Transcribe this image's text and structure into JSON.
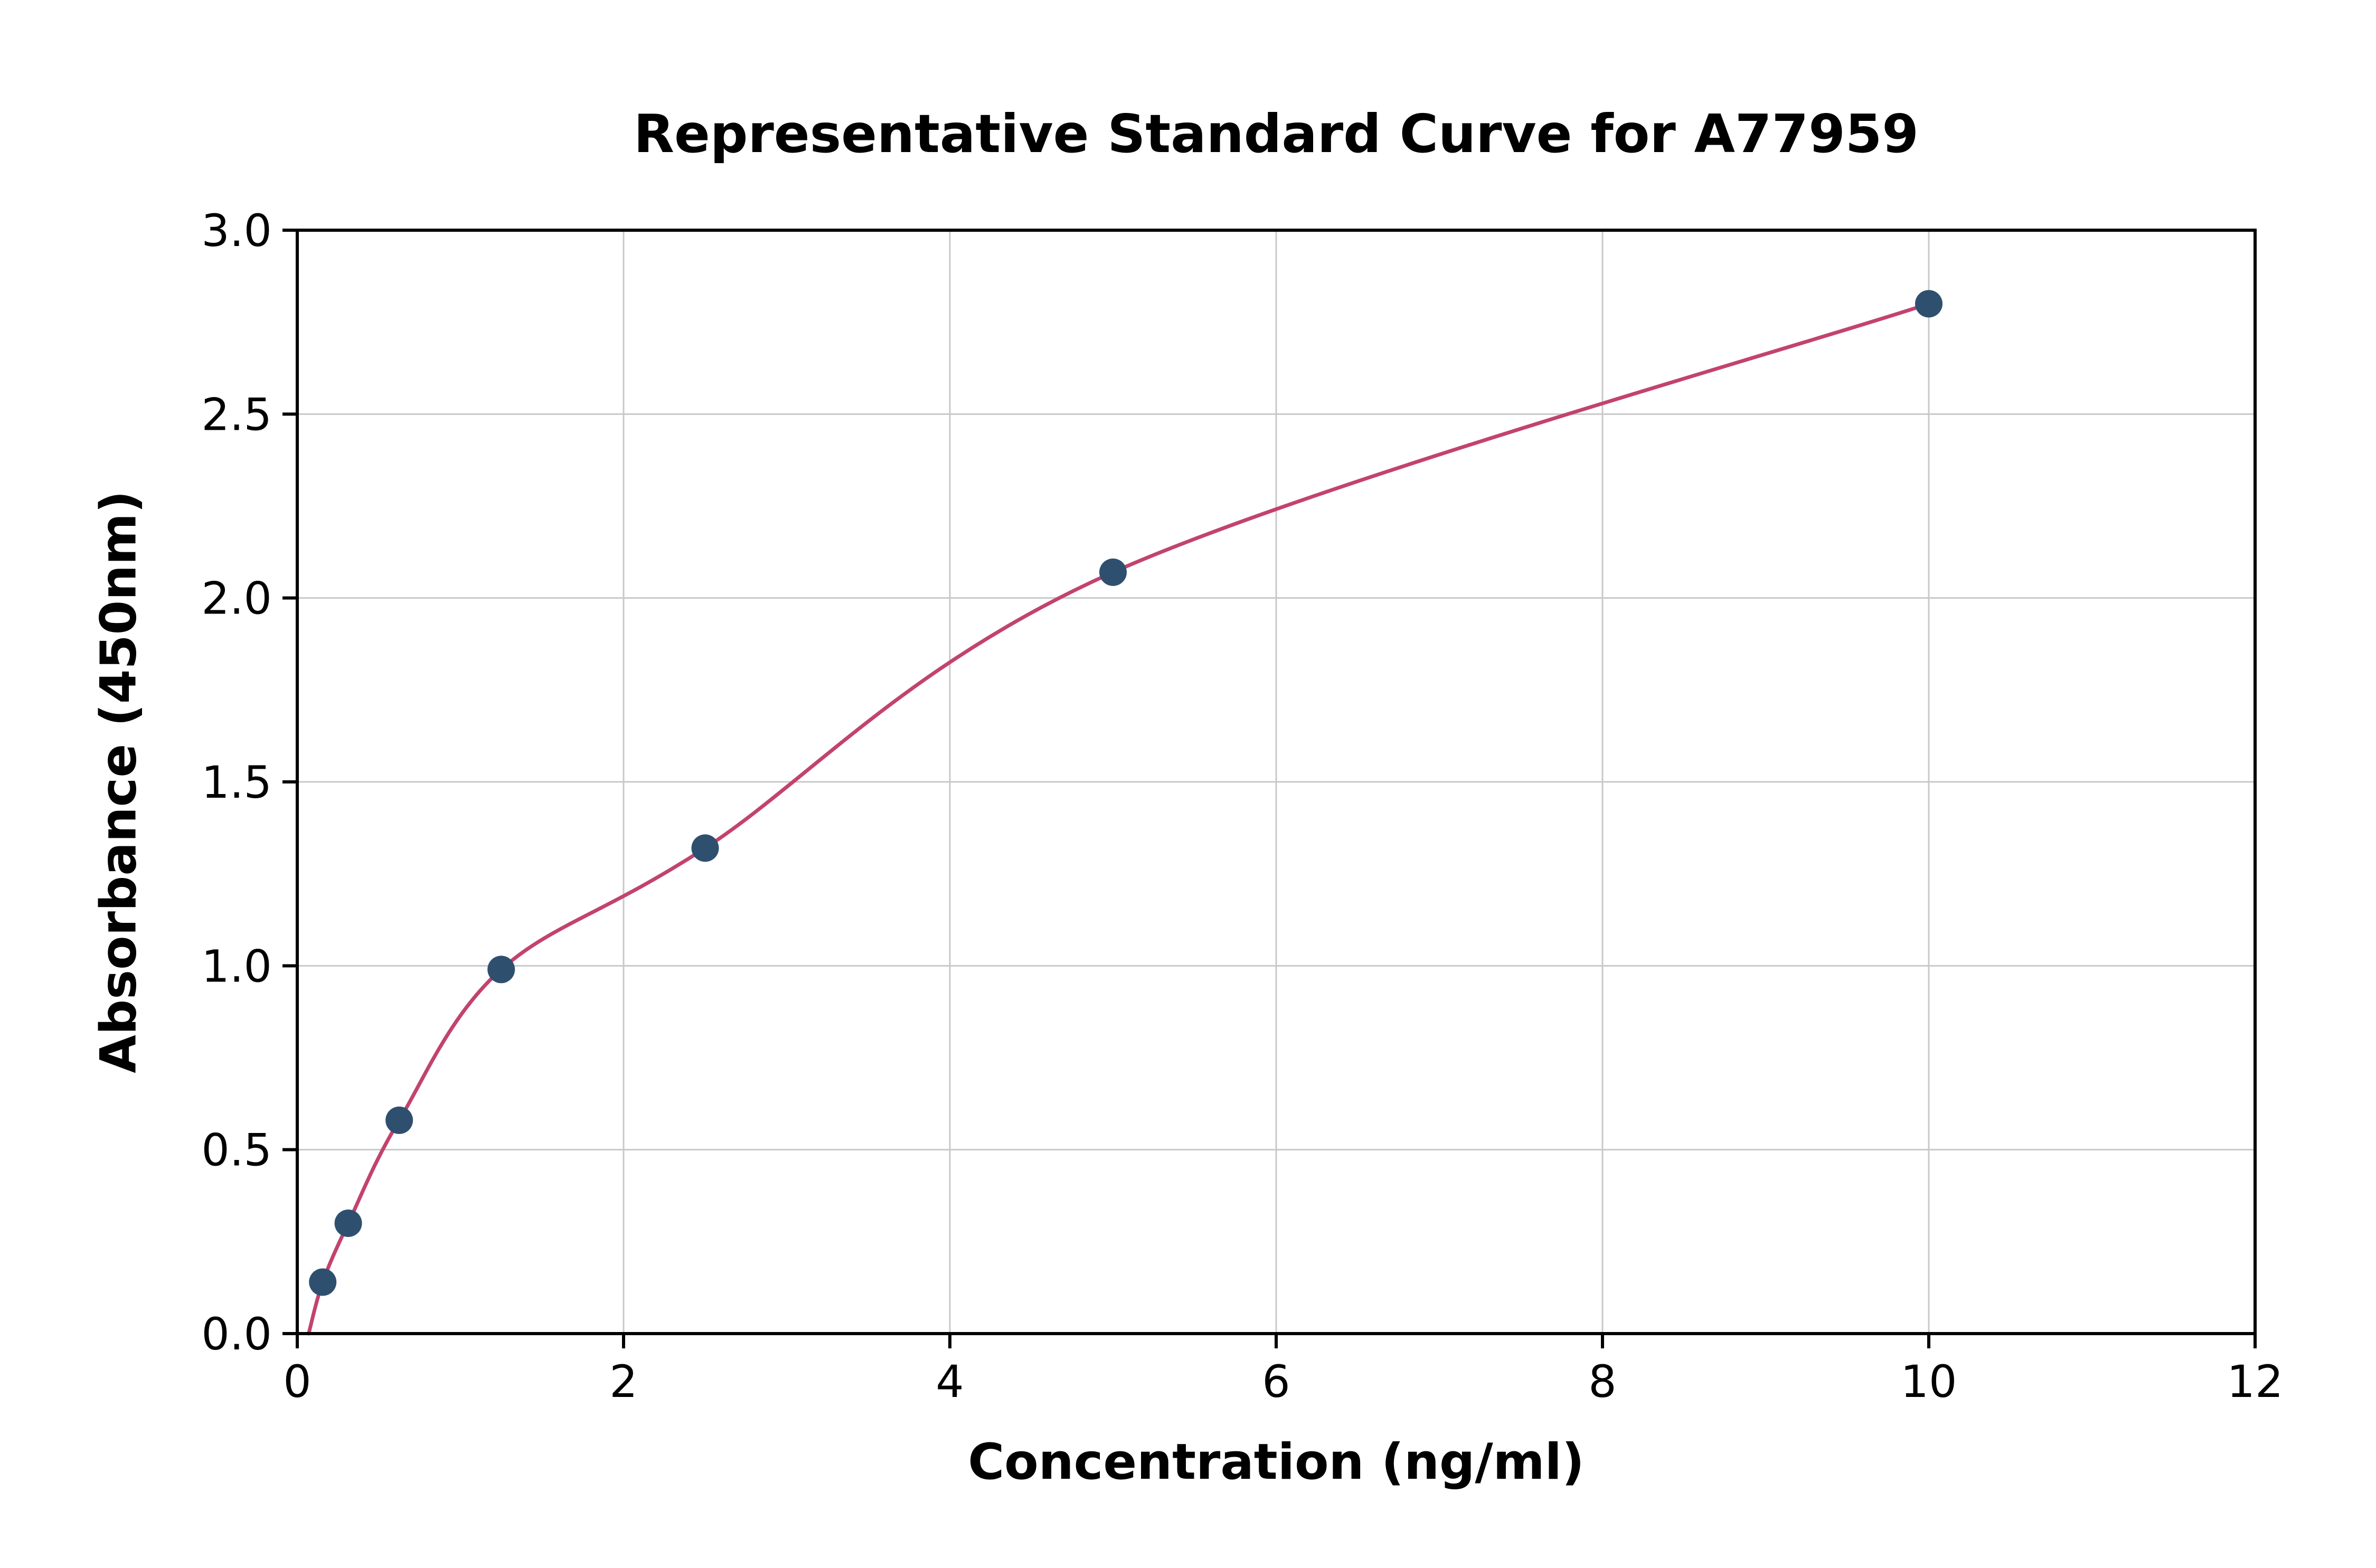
{
  "chart_data": {
    "type": "scatter",
    "title": "Representative Standard Curve for A77959",
    "xlabel": "Concentration (ng/ml)",
    "ylabel": "Absorbance (450nm)",
    "xlim": [
      0,
      12
    ],
    "ylim": [
      0,
      3
    ],
    "xticks": [
      0,
      2,
      4,
      6,
      8,
      10,
      12
    ],
    "xtick_labels": [
      "0",
      "2",
      "4",
      "6",
      "8",
      "10",
      "12"
    ],
    "yticks": [
      0,
      0.5,
      1.0,
      1.5,
      2.0,
      2.5,
      3.0
    ],
    "ytick_labels": [
      "0.0",
      "0.5",
      "1.0",
      "1.5",
      "2.0",
      "2.5",
      "3.0"
    ],
    "grid": true,
    "legend": "none",
    "points": [
      {
        "x": 0.156,
        "y": 0.14
      },
      {
        "x": 0.3125,
        "y": 0.3
      },
      {
        "x": 0.625,
        "y": 0.58
      },
      {
        "x": 1.25,
        "y": 0.99
      },
      {
        "x": 2.5,
        "y": 1.32
      },
      {
        "x": 5.0,
        "y": 2.07
      },
      {
        "x": 10.0,
        "y": 2.8
      }
    ],
    "curve_start": {
      "x": 0.07,
      "y": 0.0
    },
    "colors": {
      "curve": "#c2436e",
      "point": "#2f4f6f",
      "grid": "#c9c9c9",
      "frame": "#000000",
      "text": "#000000"
    }
  }
}
